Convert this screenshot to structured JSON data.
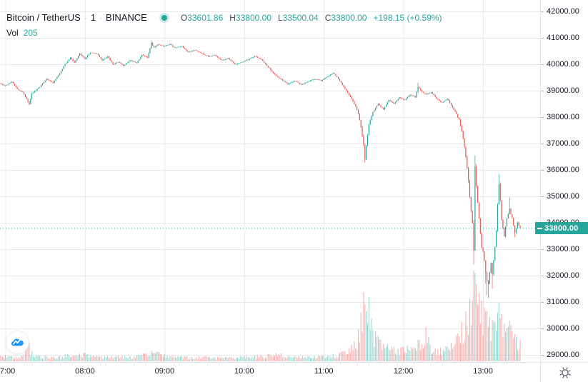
{
  "header": {
    "symbol": "Bitcoin / TetherUS",
    "sep": "·",
    "interval": "1",
    "exchange": "BINANCE",
    "ohlc": [
      {
        "label": "O",
        "value": "33601.86"
      },
      {
        "label": "H",
        "value": "33800.00"
      },
      {
        "label": "L",
        "value": "33500.04"
      },
      {
        "label": "C",
        "value": "33800.00"
      }
    ],
    "change": "+198.15 (+0.59%)",
    "volume_label": "Vol",
    "volume_value": "205"
  },
  "colors": {
    "up": "#26a69a",
    "down": "#ef5350",
    "grid": "#e9eaec",
    "axis_text": "#131722",
    "badge_bg": "#26a69a",
    "logo_blue": "#2196f3",
    "gear_gray": "#50535e"
  },
  "price_axis": {
    "last_price_label": "33800.00",
    "tick_labels": [
      "42000.00",
      "41000.00",
      "40000.00",
      "39000.00",
      "38000.00",
      "37000.00",
      "36000.00",
      "35000.00",
      "34000.00",
      "33000.00",
      "32000.00",
      "31000.00",
      "30000.00",
      "29000.00"
    ]
  },
  "time_axis": {
    "tick_labels": [
      "07:00",
      "08:00",
      "09:00",
      "10:00",
      "11:00",
      "12:00",
      "13:00"
    ]
  },
  "chart_data": {
    "type": "candlestick+volume",
    "title": "Bitcoin / TetherUS 1m BINANCE",
    "interval_minutes": 1,
    "last_price": 33800,
    "current_bar": {
      "open": 33601.86,
      "high": 33800.0,
      "low": 33500.04,
      "close": 33800.0,
      "change": 198.15,
      "change_pct": 0.59,
      "volume": 205
    },
    "y_axis": {
      "ticks": [
        29000,
        30000,
        31000,
        32000,
        33000,
        34000,
        35000,
        36000,
        37000,
        38000,
        39000,
        40000,
        41000,
        42000
      ],
      "range_visible": [
        28700,
        42400
      ]
    },
    "x_axis": {
      "unit": "minutes_from_07:00",
      "visible_range": [
        -4,
        388
      ],
      "hour_ticks": [
        {
          "t": 0,
          "label": "07:00"
        },
        {
          "t": 60,
          "label": "08:00"
        },
        {
          "t": 120,
          "label": "09:00"
        },
        {
          "t": 180,
          "label": "10:00"
        },
        {
          "t": 240,
          "label": "11:00"
        },
        {
          "t": 300,
          "label": "12:00"
        },
        {
          "t": 360,
          "label": "13:00"
        }
      ]
    },
    "legend_position": "top-left",
    "grid": true,
    "price_path_note": "anchors [minute, price, noise, lowOverride, highOverride] read from chart",
    "price_path": [
      [
        -4,
        39280,
        60
      ],
      [
        0,
        39180,
        60
      ],
      [
        5,
        39350,
        60
      ],
      [
        9,
        39050,
        55
      ],
      [
        13,
        38950,
        55
      ],
      [
        17,
        38600,
        70
      ],
      [
        18,
        38480,
        45,
        38450,
        null
      ],
      [
        20,
        38900,
        60
      ],
      [
        26,
        39150,
        55
      ],
      [
        31,
        39450,
        55
      ],
      [
        36,
        39300,
        55
      ],
      [
        41,
        39650,
        60
      ],
      [
        45,
        40000,
        60
      ],
      [
        49,
        40250,
        55
      ],
      [
        52,
        40050,
        55
      ],
      [
        56,
        40400,
        60
      ],
      [
        60,
        40200,
        55
      ],
      [
        64,
        40450,
        55
      ],
      [
        69,
        40400,
        50
      ],
      [
        73,
        40150,
        55
      ],
      [
        77,
        40300,
        50
      ],
      [
        81,
        40000,
        55
      ],
      [
        85,
        40100,
        50
      ],
      [
        89,
        39950,
        55
      ],
      [
        94,
        40150,
        50
      ],
      [
        99,
        40050,
        50
      ],
      [
        103,
        40350,
        55
      ],
      [
        107,
        40250,
        50
      ],
      [
        110,
        40800,
        90,
        null,
        40900
      ],
      [
        112,
        40650,
        55
      ],
      [
        115,
        40750,
        50
      ],
      [
        120,
        40680,
        50
      ],
      [
        124,
        40760,
        50
      ],
      [
        128,
        40620,
        50
      ],
      [
        133,
        40680,
        50
      ],
      [
        138,
        40450,
        50
      ],
      [
        143,
        40550,
        50
      ],
      [
        148,
        40400,
        50
      ],
      [
        153,
        40300,
        50
      ],
      [
        158,
        40350,
        45
      ],
      [
        163,
        40150,
        50
      ],
      [
        168,
        40220,
        45
      ],
      [
        173,
        40000,
        50
      ],
      [
        178,
        40080,
        45
      ],
      [
        183,
        40180,
        45
      ],
      [
        188,
        40300,
        50
      ],
      [
        193,
        40180,
        45
      ],
      [
        198,
        39900,
        55
      ],
      [
        203,
        39600,
        55
      ],
      [
        208,
        39420,
        55
      ],
      [
        213,
        39250,
        55
      ],
      [
        218,
        39380,
        50
      ],
      [
        223,
        39220,
        50
      ],
      [
        228,
        39350,
        50
      ],
      [
        233,
        39450,
        50
      ],
      [
        238,
        39380,
        45
      ],
      [
        243,
        39550,
        50
      ],
      [
        247,
        39680,
        50
      ],
      [
        251,
        39450,
        55
      ],
      [
        255,
        39150,
        60
      ],
      [
        259,
        38850,
        65
      ],
      [
        263,
        38500,
        70
      ],
      [
        266,
        38150,
        80
      ],
      [
        268,
        37650,
        110
      ],
      [
        270,
        36950,
        160
      ],
      [
        271,
        36400,
        120,
        36280,
        null
      ],
      [
        272,
        36900,
        140
      ],
      [
        274,
        37750,
        120
      ],
      [
        277,
        38200,
        80
      ],
      [
        281,
        38500,
        60
      ],
      [
        285,
        38300,
        60
      ],
      [
        289,
        38650,
        55
      ],
      [
        293,
        38500,
        55
      ],
      [
        297,
        38750,
        55
      ],
      [
        301,
        38650,
        50
      ],
      [
        305,
        38850,
        55
      ],
      [
        309,
        38750,
        55
      ],
      [
        311,
        39150,
        80,
        null,
        39300
      ],
      [
        313,
        39000,
        60
      ],
      [
        317,
        38850,
        60
      ],
      [
        321,
        38950,
        55
      ],
      [
        325,
        38700,
        55
      ],
      [
        329,
        38550,
        55
      ],
      [
        333,
        38700,
        55
      ],
      [
        336,
        38450,
        60
      ],
      [
        339,
        38200,
        70
      ],
      [
        342,
        37900,
        80
      ],
      [
        344,
        37450,
        100
      ],
      [
        346,
        36900,
        130
      ],
      [
        348,
        36100,
        200
      ],
      [
        350,
        35000,
        260
      ],
      [
        352,
        34000,
        300
      ],
      [
        353,
        33000,
        330,
        32420,
        null
      ],
      [
        354,
        36200,
        260,
        null,
        36550
      ],
      [
        355,
        35400,
        200
      ],
      [
        356,
        34800,
        200
      ],
      [
        357,
        34200,
        200
      ],
      [
        358,
        33600,
        200
      ],
      [
        359,
        33100,
        180
      ],
      [
        360,
        32900,
        160
      ],
      [
        361,
        32600,
        160
      ],
      [
        362,
        32100,
        180,
        31700,
        null
      ],
      [
        363,
        31800,
        200,
        31250,
        null
      ],
      [
        364,
        31650,
        200,
        31150,
        null
      ],
      [
        365,
        32100,
        180
      ],
      [
        366,
        32500,
        160
      ],
      [
        367,
        32050,
        160,
        31500,
        null
      ],
      [
        368,
        32600,
        150
      ],
      [
        369,
        33100,
        140
      ],
      [
        370,
        33700,
        150
      ],
      [
        371,
        34700,
        180
      ],
      [
        372,
        35450,
        220,
        null,
        35850
      ],
      [
        373,
        34800,
        180
      ],
      [
        374,
        34150,
        160
      ],
      [
        375,
        33800,
        140
      ],
      [
        376,
        33500,
        130
      ],
      [
        377,
        33900,
        130
      ],
      [
        378,
        34150,
        120
      ],
      [
        380,
        34550,
        130,
        null,
        34950
      ],
      [
        382,
        34150,
        120
      ],
      [
        384,
        33650,
        110,
        33450,
        null
      ],
      [
        386,
        34000,
        110
      ],
      [
        388,
        33800,
        100
      ]
    ],
    "volume_profile_note": "anchors [minute, bar_height_px] of volume overlay, baseline at pane bottom",
    "volume_profile": [
      [
        -4,
        8
      ],
      [
        0,
        9
      ],
      [
        5,
        7
      ],
      [
        10,
        6
      ],
      [
        17,
        22
      ],
      [
        18,
        26
      ],
      [
        20,
        14
      ],
      [
        26,
        8
      ],
      [
        31,
        7
      ],
      [
        36,
        6
      ],
      [
        45,
        10
      ],
      [
        52,
        8
      ],
      [
        60,
        12
      ],
      [
        69,
        8
      ],
      [
        77,
        7
      ],
      [
        85,
        8
      ],
      [
        94,
        7
      ],
      [
        103,
        9
      ],
      [
        110,
        15
      ],
      [
        120,
        10
      ],
      [
        130,
        7
      ],
      [
        140,
        6
      ],
      [
        150,
        7
      ],
      [
        160,
        6
      ],
      [
        170,
        6
      ],
      [
        180,
        7
      ],
      [
        190,
        8
      ],
      [
        198,
        10
      ],
      [
        208,
        11
      ],
      [
        218,
        7
      ],
      [
        228,
        7
      ],
      [
        238,
        8
      ],
      [
        247,
        10
      ],
      [
        255,
        14
      ],
      [
        259,
        18
      ],
      [
        263,
        28
      ],
      [
        266,
        45
      ],
      [
        268,
        68
      ],
      [
        270,
        97
      ],
      [
        271,
        80
      ],
      [
        272,
        70
      ],
      [
        274,
        90
      ],
      [
        276,
        60
      ],
      [
        279,
        42
      ],
      [
        283,
        30
      ],
      [
        288,
        24
      ],
      [
        293,
        21
      ],
      [
        298,
        19
      ],
      [
        303,
        22
      ],
      [
        308,
        19
      ],
      [
        311,
        30
      ],
      [
        314,
        24
      ],
      [
        317,
        48
      ],
      [
        320,
        24
      ],
      [
        324,
        18
      ],
      [
        328,
        19
      ],
      [
        332,
        21
      ],
      [
        336,
        26
      ],
      [
        340,
        36
      ],
      [
        344,
        55
      ],
      [
        347,
        70
      ],
      [
        350,
        88
      ],
      [
        353,
        127
      ],
      [
        355,
        108
      ],
      [
        357,
        96
      ],
      [
        359,
        85
      ],
      [
        361,
        75
      ],
      [
        363,
        70
      ],
      [
        365,
        62
      ],
      [
        367,
        58
      ],
      [
        369,
        55
      ],
      [
        371,
        68
      ],
      [
        372,
        82
      ],
      [
        374,
        66
      ],
      [
        376,
        52
      ],
      [
        378,
        46
      ],
      [
        380,
        56
      ],
      [
        382,
        42
      ],
      [
        385,
        34
      ],
      [
        388,
        30
      ]
    ]
  }
}
